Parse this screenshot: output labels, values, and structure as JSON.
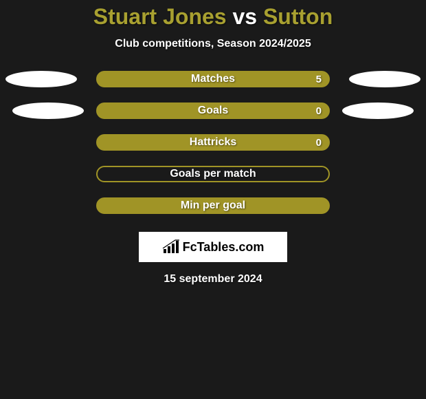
{
  "title": {
    "player": "Stuart Jones",
    "vs": "vs",
    "opponent": "Sutton",
    "player_color": "#a8a030",
    "vs_color": "#ffffff",
    "opponent_color": "#a8a030",
    "fontsize": 32
  },
  "subtitle": "Club competitions, Season 2024/2025",
  "background_color": "#1a1a1a",
  "ellipse_color": "#ffffff",
  "rows": [
    {
      "label": "Matches",
      "value": "5",
      "show_value": true,
      "bar_background": "#a09426",
      "bar_border": "#a09426",
      "show_left_ellipse": true,
      "show_right_ellipse": true,
      "ellipse_indent": false
    },
    {
      "label": "Goals",
      "value": "0",
      "show_value": true,
      "bar_background": "#a09426",
      "bar_border": "#a09426",
      "show_left_ellipse": true,
      "show_right_ellipse": true,
      "ellipse_indent": true
    },
    {
      "label": "Hattricks",
      "value": "0",
      "show_value": true,
      "bar_background": "#a09426",
      "bar_border": "#a09426",
      "show_left_ellipse": false,
      "show_right_ellipse": false,
      "ellipse_indent": false
    },
    {
      "label": "Goals per match",
      "value": "",
      "show_value": false,
      "bar_background": "transparent",
      "bar_border": "#a09426",
      "show_left_ellipse": false,
      "show_right_ellipse": false,
      "ellipse_indent": false
    },
    {
      "label": "Min per goal",
      "value": "",
      "show_value": false,
      "bar_background": "#a09426",
      "bar_border": "#a09426",
      "show_left_ellipse": false,
      "show_right_ellipse": false,
      "ellipse_indent": false
    }
  ],
  "brand": {
    "text": "FcTables.com",
    "icon_color": "#000000",
    "background": "#ffffff"
  },
  "date": "15 september 2024"
}
